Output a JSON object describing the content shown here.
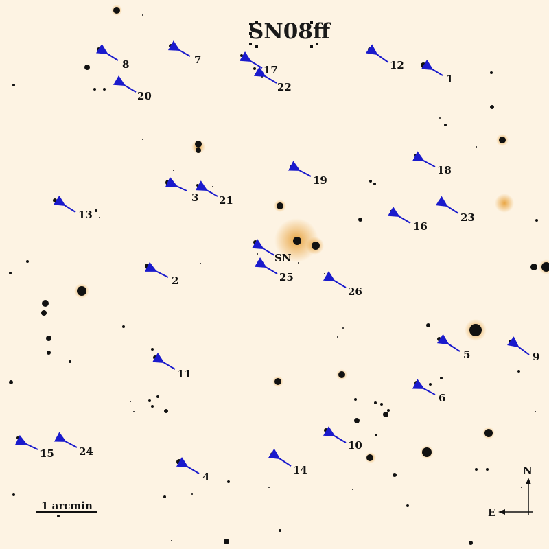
{
  "title": "SN08ff",
  "colors": {
    "background": "#fdf3e3",
    "star": "#111111",
    "halo": "#e8a23c",
    "arrow": "#1a1acc",
    "text": "#111111"
  },
  "scale_bar": {
    "label": "1 arcmin"
  },
  "compass": {
    "north": "N",
    "east": "E"
  },
  "supernova_label": "SN",
  "markers": [
    "1",
    "2",
    "3",
    "4",
    "5",
    "6",
    "7",
    "8",
    "9",
    "10",
    "11",
    "12",
    "13",
    "14",
    "15",
    "16",
    "17",
    "18",
    "19",
    "20",
    "21",
    "22",
    "23",
    "24",
    "25",
    "26"
  ]
}
